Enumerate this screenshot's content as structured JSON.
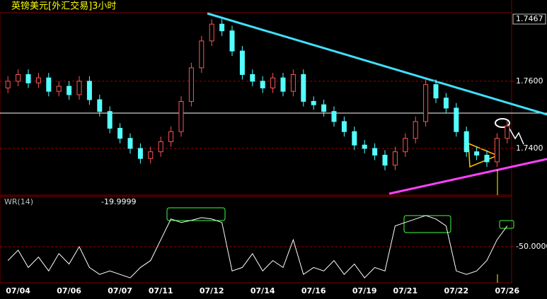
{
  "chart_data": [
    {
      "type": "candlestick",
      "title": "英镑美元[外汇交易]3小时",
      "categories": [
        null,
        "07/04",
        null,
        null,
        null,
        null,
        "07/06",
        null,
        null,
        null,
        null,
        "07/07",
        null,
        null,
        null,
        "07/11",
        null,
        null,
        null,
        null,
        "07/12",
        null,
        null,
        null,
        null,
        "07/14",
        null,
        null,
        null,
        null,
        "07/16",
        null,
        null,
        null,
        null,
        "07/19",
        null,
        null,
        null,
        "07/21",
        null,
        null,
        null,
        null,
        "07/22",
        null,
        null,
        null,
        null,
        "07/26"
      ],
      "open": [
        1.758,
        1.76,
        1.762,
        1.7595,
        1.761,
        1.757,
        1.7585,
        1.756,
        1.76,
        1.7545,
        1.751,
        1.746,
        1.743,
        1.74,
        1.737,
        1.739,
        1.742,
        1.745,
        1.754,
        1.764,
        1.772,
        1.777,
        1.775,
        1.769,
        1.762,
        1.76,
        1.758,
        1.761,
        1.757,
        1.762,
        1.754,
        1.753,
        1.751,
        1.748,
        1.745,
        1.741,
        1.74,
        1.738,
        1.735,
        1.739,
        1.743,
        1.748,
        1.759,
        1.755,
        1.752,
        1.745,
        1.739,
        1.738,
        1.736,
        1.743
      ],
      "high": [
        1.7615,
        1.7635,
        1.7635,
        1.7625,
        1.7625,
        1.76,
        1.76,
        1.7615,
        1.7615,
        1.756,
        1.7525,
        1.7475,
        1.7445,
        1.7415,
        1.7405,
        1.7435,
        1.7465,
        1.7555,
        1.7655,
        1.7735,
        1.7785,
        1.7785,
        1.7765,
        1.7705,
        1.7635,
        1.7615,
        1.7625,
        1.7625,
        1.7635,
        1.7635,
        1.7555,
        1.7545,
        1.7525,
        1.7495,
        1.7465,
        1.7425,
        1.7415,
        1.7395,
        1.7405,
        1.7445,
        1.7495,
        1.7605,
        1.7605,
        1.7565,
        1.7535,
        1.7465,
        1.7405,
        1.7395,
        1.7445,
        1.7482
      ],
      "low": [
        1.7565,
        1.7585,
        1.758,
        1.758,
        1.7555,
        1.7555,
        1.7545,
        1.7545,
        1.753,
        1.7495,
        1.7445,
        1.7415,
        1.7385,
        1.7355,
        1.7355,
        1.7375,
        1.7405,
        1.7435,
        1.7525,
        1.7625,
        1.7705,
        1.7735,
        1.7675,
        1.7605,
        1.7585,
        1.7565,
        1.7565,
        1.7555,
        1.7555,
        1.7525,
        1.7515,
        1.7495,
        1.7465,
        1.7435,
        1.7395,
        1.7385,
        1.7365,
        1.7335,
        1.7335,
        1.7375,
        1.7415,
        1.7465,
        1.7535,
        1.7505,
        1.7435,
        1.7375,
        1.7365,
        1.7345,
        1.7345,
        1.7415
      ],
      "close": [
        1.76,
        1.762,
        1.7595,
        1.761,
        1.757,
        1.7585,
        1.756,
        1.76,
        1.7545,
        1.751,
        1.746,
        1.743,
        1.74,
        1.737,
        1.739,
        1.742,
        1.745,
        1.754,
        1.764,
        1.772,
        1.777,
        1.775,
        1.769,
        1.762,
        1.76,
        1.758,
        1.761,
        1.757,
        1.762,
        1.754,
        1.753,
        1.751,
        1.748,
        1.745,
        1.741,
        1.74,
        1.738,
        1.735,
        1.739,
        1.743,
        1.748,
        1.759,
        1.755,
        1.752,
        1.745,
        1.739,
        1.738,
        1.736,
        1.743,
        1.7467
      ],
      "up_color": "#ff5454",
      "down_color": "#54ffff",
      "ylim": [
        1.7261,
        1.7804
      ],
      "yticks": [
        {
          "value": 1.74,
          "label": "1.7400"
        },
        {
          "value": 1.76,
          "label": "1.7600"
        }
      ],
      "grid": true
    },
    {
      "type": "line",
      "title": "WR(14)",
      "series": [
        {
          "name": "WR(14)",
          "color": "#ffffff",
          "values": [
            -70,
            -55,
            -80,
            -65,
            -85,
            -60,
            -75,
            -50,
            -80,
            -90,
            -85,
            -90,
            -95,
            -80,
            -70,
            -40,
            -10,
            -15,
            -12,
            -8,
            -10,
            -15,
            -85,
            -80,
            -60,
            -85,
            -70,
            -80,
            -40,
            -90,
            -80,
            -85,
            -70,
            -90,
            -75,
            -95,
            -80,
            -85,
            -20,
            -15,
            -10,
            -5,
            -10,
            -20,
            -85,
            -90,
            -85,
            -70,
            -40,
            -19.9999
          ]
        }
      ],
      "ylim": [
        -100,
        0
      ],
      "yticks": [
        {
          "value": -50,
          "label": "-50.0000"
        }
      ],
      "grid": true
    }
  ]
}
